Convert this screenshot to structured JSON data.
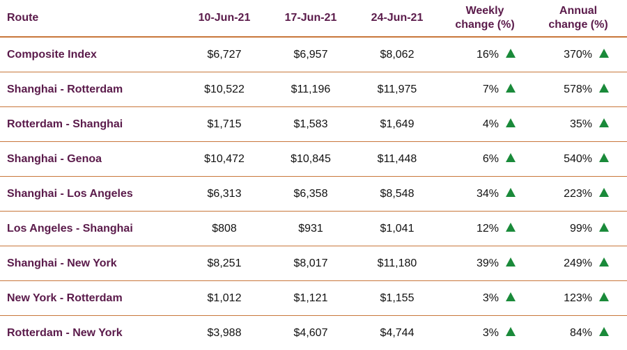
{
  "header": {
    "route": "Route",
    "date1": "10-Jun-21",
    "date2": "17-Jun-21",
    "date3": "24-Jun-21",
    "weekly_line1": "Weekly",
    "weekly_line2": "change (%)",
    "annual_line1": "Annual",
    "annual_line2": "change (%)"
  },
  "up_arrow_color": "#1a8a3a",
  "rows": [
    {
      "route": "Composite Index",
      "d1": "$6,727",
      "d2": "$6,957",
      "d3": "$8,062",
      "weekly": "16%",
      "weekly_icon": "up-triangle-icon",
      "annual": "370%",
      "annual_icon": "up-triangle-icon"
    },
    {
      "route": "Shanghai - Rotterdam",
      "d1": "$10,522",
      "d2": "$11,196",
      "d3": "$11,975",
      "weekly": "7%",
      "weekly_icon": "up-triangle-icon",
      "annual": "578%",
      "annual_icon": "up-triangle-icon"
    },
    {
      "route": "Rotterdam - Shanghai",
      "d1": "$1,715",
      "d2": "$1,583",
      "d3": "$1,649",
      "weekly": "4%",
      "weekly_icon": "up-triangle-icon",
      "annual": "35%",
      "annual_icon": "up-triangle-icon"
    },
    {
      "route": "Shanghai - Genoa",
      "d1": "$10,472",
      "d2": "$10,845",
      "d3": "$11,448",
      "weekly": "6%",
      "weekly_icon": "up-triangle-icon",
      "annual": "540%",
      "annual_icon": "up-triangle-icon"
    },
    {
      "route": "Shanghai - Los Angeles",
      "d1": "$6,313",
      "d2": "$6,358",
      "d3": "$8,548",
      "weekly": "34%",
      "weekly_icon": "up-triangle-icon",
      "annual": "223%",
      "annual_icon": "up-triangle-icon"
    },
    {
      "route": "Los Angeles - Shanghai",
      "d1": "$808",
      "d2": "$931",
      "d3": "$1,041",
      "weekly": "12%",
      "weekly_icon": "up-triangle-icon",
      "annual": "99%",
      "annual_icon": "up-triangle-icon"
    },
    {
      "route": "Shanghai - New York",
      "d1": "$8,251",
      "d2": "$8,017",
      "d3": "$11,180",
      "weekly": "39%",
      "weekly_icon": "up-triangle-icon",
      "annual": "249%",
      "annual_icon": "up-triangle-icon"
    },
    {
      "route": "New York - Rotterdam",
      "d1": "$1,012",
      "d2": "$1,121",
      "d3": "$1,155",
      "weekly": "3%",
      "weekly_icon": "up-triangle-icon",
      "annual": "123%",
      "annual_icon": "up-triangle-icon"
    },
    {
      "route": "Rotterdam - New York",
      "d1": "$3,988",
      "d2": "$4,607",
      "d3": "$4,744",
      "weekly": "3%",
      "weekly_icon": "up-triangle-icon",
      "annual": "84%",
      "annual_icon": "up-triangle-icon"
    }
  ]
}
